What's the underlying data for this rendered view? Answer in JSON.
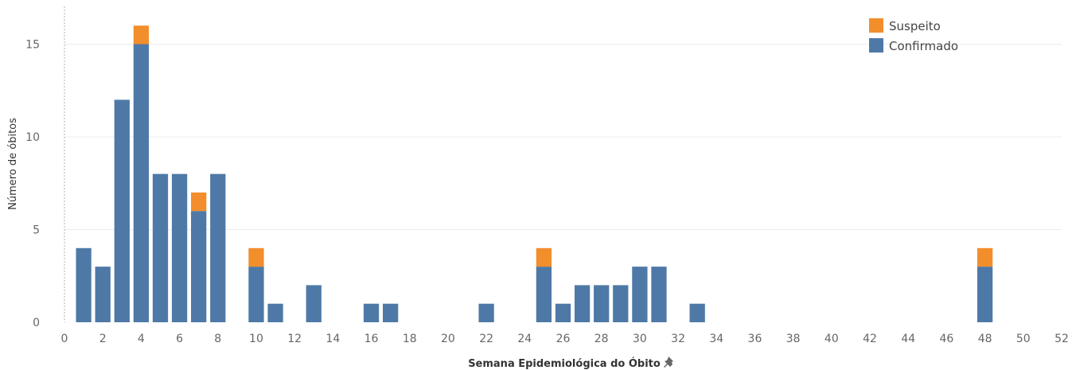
{
  "chart_data": {
    "type": "bar",
    "stacked": true,
    "xlabel": "Semana Epidemiológica do Óbito",
    "ylabel": "Número de óbitos",
    "xlim": [
      0,
      52
    ],
    "ylim": [
      0,
      16
    ],
    "x_ticks": [
      "0",
      "2",
      "4",
      "6",
      "8",
      "10",
      "12",
      "14",
      "16",
      "18",
      "20",
      "22",
      "24",
      "26",
      "28",
      "30",
      "32",
      "34",
      "36",
      "38",
      "40",
      "42",
      "44",
      "46",
      "48",
      "50",
      "52"
    ],
    "y_ticks": [
      "0",
      "5",
      "10",
      "15"
    ],
    "grid": "horizontal",
    "legend_position": "top-right",
    "x": [
      1,
      2,
      3,
      4,
      5,
      6,
      7,
      8,
      10,
      11,
      13,
      16,
      17,
      22,
      25,
      26,
      27,
      28,
      29,
      30,
      31,
      33,
      48
    ],
    "series": [
      {
        "name": "Confirmado",
        "color": "#4e79a7",
        "values": [
          4,
          3,
          12,
          15,
          8,
          8,
          6,
          8,
          3,
          1,
          2,
          1,
          1,
          1,
          3,
          1,
          2,
          2,
          2,
          3,
          3,
          1,
          3
        ]
      },
      {
        "name": "Suspeito",
        "color": "#f28e2b",
        "values": [
          0,
          0,
          0,
          1,
          0,
          0,
          1,
          0,
          1,
          0,
          0,
          0,
          0,
          0,
          1,
          0,
          0,
          0,
          0,
          0,
          0,
          0,
          1
        ]
      }
    ],
    "legend": [
      "Suspeito",
      "Confirmado"
    ],
    "pin_icon": "pin-icon"
  }
}
